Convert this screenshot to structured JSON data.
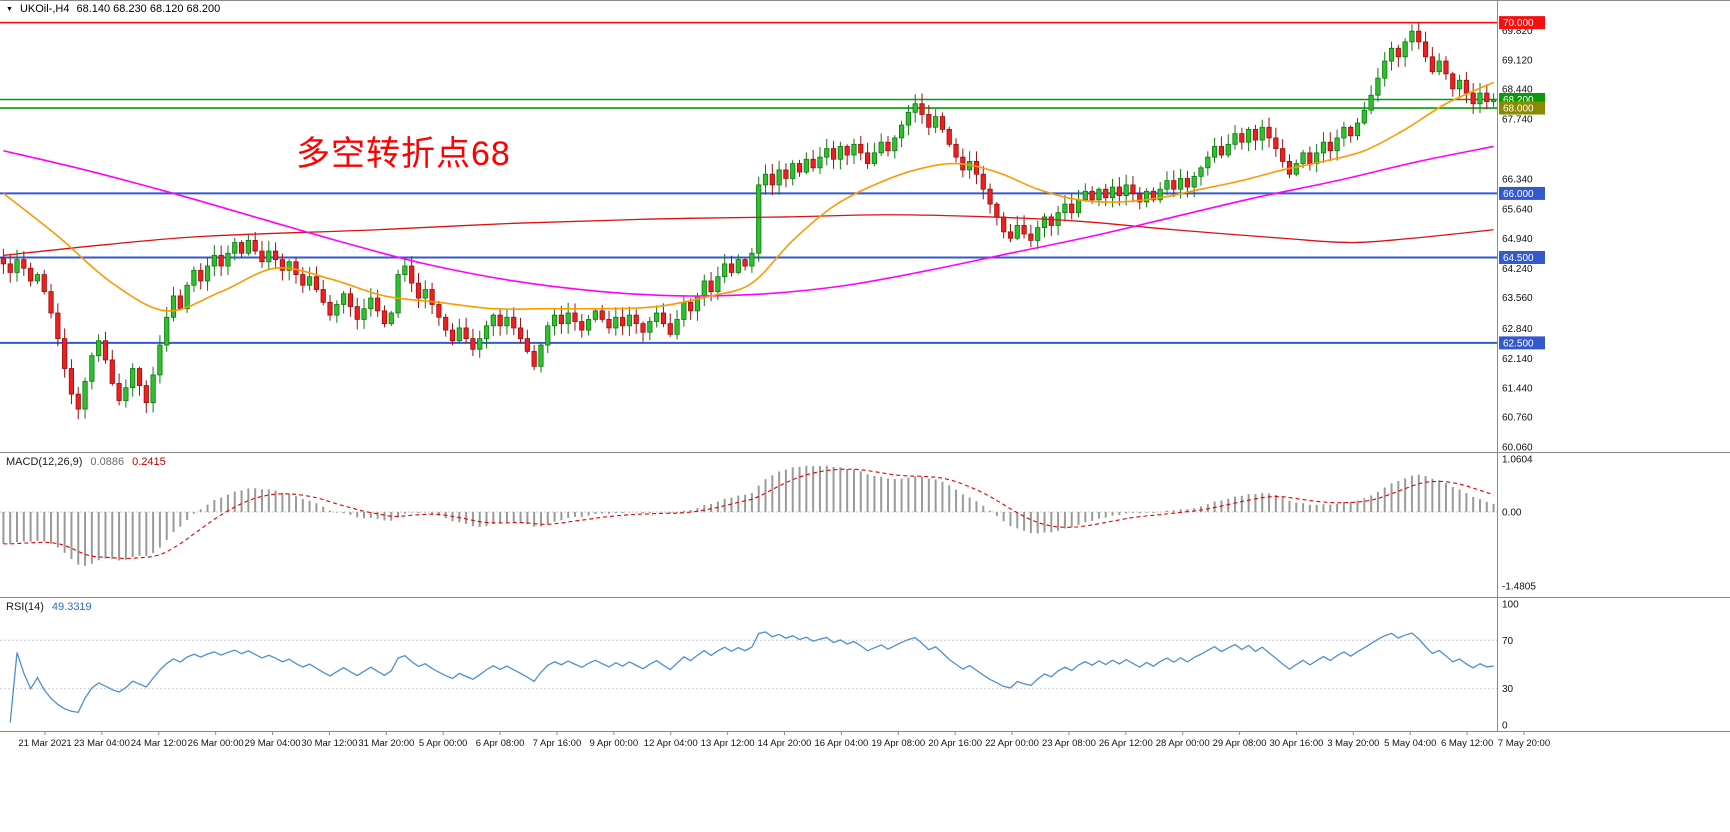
{
  "header": {
    "marker": "▼",
    "symbol_period": "UKOil-,H4",
    "ohlc": "68.140 68.230 68.120 68.200"
  },
  "annotation": {
    "text": "多空转折点68",
    "color": "#ff0000"
  },
  "macd_panel": {
    "label": "MACD(12,26,9)",
    "value_main": "0.0886",
    "value_signal": "0.2415"
  },
  "rsi_panel": {
    "label": "RSI(14)",
    "value": "49.3319"
  },
  "chart_data": {
    "type": "candlestick",
    "symbol": "UKOil-",
    "timeframe": "H4",
    "current_ohlc": {
      "open": 68.14,
      "high": 68.23,
      "low": 68.12,
      "close": 68.2
    },
    "ylim": [
      60.0,
      70.5
    ],
    "price_ticks": [
      {
        "v": 69.82,
        "label": "69.820"
      },
      {
        "v": 69.12,
        "label": "69.120"
      },
      {
        "v": 68.44,
        "label": "68.440"
      },
      {
        "v": 67.74,
        "label": "67.740"
      },
      {
        "v": 66.34,
        "label": "66.340"
      },
      {
        "v": 65.64,
        "label": "65.640"
      },
      {
        "v": 64.94,
        "label": "64.940"
      },
      {
        "v": 64.24,
        "label": "64.240"
      },
      {
        "v": 63.56,
        "label": "63.560"
      },
      {
        "v": 62.84,
        "label": "62.840"
      },
      {
        "v": 62.14,
        "label": "62.140"
      },
      {
        "v": 61.44,
        "label": "61.440"
      },
      {
        "v": 60.76,
        "label": "60.760"
      },
      {
        "v": 60.06,
        "label": "60.060"
      }
    ],
    "badges": [
      {
        "v": 70.0,
        "label": "70.000",
        "bg": "#f50f0f"
      },
      {
        "v": 68.2,
        "label": "68.200",
        "bg": "#0a9a0a"
      },
      {
        "v": 68.0,
        "label": "68.000",
        "bg": "#8a8a00"
      },
      {
        "v": 66.0,
        "label": "66.000",
        "bg": "#3558cf"
      },
      {
        "v": 64.5,
        "label": "64.500",
        "bg": "#3558cf"
      },
      {
        "v": 62.5,
        "label": "62.500",
        "bg": "#3558cf"
      }
    ],
    "hlines": [
      {
        "v": 70.0,
        "color": "#ff0000",
        "width": 1.4
      },
      {
        "v": 68.2,
        "color": "#089908",
        "width": 1.6
      },
      {
        "v": 68.0,
        "color": "#089908",
        "width": 1.6
      },
      {
        "v": 66.0,
        "color": "#3558cf",
        "width": 2
      },
      {
        "v": 64.5,
        "color": "#3558cf",
        "width": 2
      },
      {
        "v": 62.5,
        "color": "#3558cf",
        "width": 2
      }
    ],
    "candle_colors": {
      "up_fill": "#2fbf2f",
      "up_stroke": "#0d7a0d",
      "down_fill": "#ef1f1f",
      "down_stroke": "#9a0f0f"
    },
    "closes": [
      64.35,
      64.15,
      64.45,
      64.25,
      63.95,
      64.1,
      63.7,
      63.2,
      62.6,
      61.9,
      61.3,
      60.95,
      61.6,
      62.2,
      62.55,
      62.1,
      61.55,
      61.15,
      61.45,
      61.9,
      61.5,
      61.1,
      61.75,
      62.45,
      63.1,
      63.6,
      63.3,
      63.85,
      64.2,
      63.95,
      64.3,
      64.55,
      64.3,
      64.6,
      64.85,
      64.6,
      64.9,
      64.65,
      64.4,
      64.65,
      64.45,
      64.2,
      64.4,
      64.1,
      63.85,
      64.05,
      63.75,
      63.45,
      63.15,
      63.4,
      63.65,
      63.35,
      63.05,
      63.3,
      63.55,
      63.25,
      62.95,
      63.2,
      64.1,
      64.3,
      63.9,
      63.55,
      63.75,
      63.4,
      63.1,
      62.8,
      62.55,
      62.85,
      62.6,
      62.35,
      62.6,
      62.9,
      63.15,
      62.9,
      63.1,
      62.85,
      62.6,
      62.3,
      61.95,
      62.45,
      62.9,
      63.15,
      62.95,
      63.2,
      63.0,
      62.8,
      63.05,
      63.25,
      63.05,
      62.85,
      63.1,
      62.9,
      63.15,
      62.95,
      62.75,
      63.0,
      63.2,
      62.95,
      62.7,
      63.05,
      63.45,
      63.25,
      63.6,
      63.95,
      63.7,
      64.05,
      64.35,
      64.15,
      64.45,
      64.3,
      64.6,
      66.2,
      66.45,
      66.2,
      66.55,
      66.35,
      66.7,
      66.5,
      66.8,
      66.6,
      66.85,
      67.05,
      66.8,
      67.1,
      66.9,
      67.15,
      66.95,
      66.7,
      66.95,
      67.2,
      67.0,
      67.3,
      67.6,
      67.9,
      68.1,
      67.85,
      67.55,
      67.8,
      67.5,
      67.15,
      66.85,
      66.55,
      66.75,
      66.45,
      66.1,
      65.75,
      65.45,
      65.1,
      64.95,
      65.25,
      65.05,
      64.9,
      65.2,
      65.45,
      65.25,
      65.55,
      65.75,
      65.55,
      65.85,
      66.05,
      65.85,
      66.1,
      65.9,
      66.15,
      65.95,
      66.2,
      66.0,
      65.8,
      66.05,
      65.85,
      66.1,
      66.3,
      66.1,
      66.35,
      66.15,
      66.4,
      66.6,
      66.85,
      67.1,
      66.9,
      67.15,
      67.4,
      67.2,
      67.5,
      67.25,
      67.55,
      67.3,
      67.05,
      66.75,
      66.45,
      66.7,
      66.95,
      66.7,
      66.95,
      67.2,
      67.0,
      67.3,
      67.55,
      67.35,
      67.65,
      67.95,
      68.3,
      68.7,
      69.1,
      69.4,
      69.2,
      69.55,
      69.8,
      69.55,
      69.2,
      68.85,
      69.1,
      68.8,
      68.45,
      68.65,
      68.35,
      68.1,
      68.35,
      68.15,
      68.2
    ],
    "ma_lines": [
      {
        "name": "ma-slow-red",
        "color": "#dd1111",
        "width": 1.3,
        "anchors": [
          [
            0,
            64.55
          ],
          [
            15,
            64.8
          ],
          [
            30,
            65.0
          ],
          [
            55,
            65.15
          ],
          [
            75,
            65.3
          ],
          [
            95,
            65.4
          ],
          [
            115,
            65.45
          ],
          [
            130,
            65.5
          ],
          [
            145,
            65.45
          ],
          [
            158,
            65.35
          ],
          [
            172,
            65.15
          ],
          [
            188,
            64.95
          ],
          [
            198,
            64.85
          ],
          [
            207,
            64.95
          ],
          [
            219,
            65.15
          ]
        ]
      },
      {
        "name": "ma-trend-magenta",
        "color": "#ff00ff",
        "width": 1.6,
        "anchors": [
          [
            0,
            67.0
          ],
          [
            12,
            66.55
          ],
          [
            25,
            66.0
          ],
          [
            38,
            65.4
          ],
          [
            50,
            64.85
          ],
          [
            62,
            64.35
          ],
          [
            75,
            63.95
          ],
          [
            88,
            63.7
          ],
          [
            100,
            63.6
          ],
          [
            112,
            63.65
          ],
          [
            124,
            63.85
          ],
          [
            136,
            64.2
          ],
          [
            148,
            64.6
          ],
          [
            160,
            65.0
          ],
          [
            172,
            65.45
          ],
          [
            184,
            65.9
          ],
          [
            196,
            66.3
          ],
          [
            208,
            66.75
          ],
          [
            219,
            67.1
          ]
        ]
      },
      {
        "name": "ma-fast-orange",
        "color": "#ff9900",
        "width": 1.6,
        "anchors": [
          [
            0,
            66.0
          ],
          [
            8,
            65.0
          ],
          [
            16,
            63.9
          ],
          [
            24,
            63.25
          ],
          [
            32,
            63.7
          ],
          [
            40,
            64.25
          ],
          [
            48,
            64.0
          ],
          [
            56,
            63.6
          ],
          [
            64,
            63.45
          ],
          [
            72,
            63.3
          ],
          [
            80,
            63.3
          ],
          [
            88,
            63.3
          ],
          [
            96,
            63.35
          ],
          [
            104,
            63.6
          ],
          [
            110,
            63.9
          ],
          [
            116,
            64.9
          ],
          [
            122,
            65.7
          ],
          [
            128,
            66.2
          ],
          [
            134,
            66.55
          ],
          [
            140,
            66.7
          ],
          [
            146,
            66.5
          ],
          [
            152,
            66.1
          ],
          [
            158,
            65.85
          ],
          [
            164,
            65.8
          ],
          [
            170,
            65.9
          ],
          [
            176,
            66.1
          ],
          [
            182,
            66.3
          ],
          [
            188,
            66.55
          ],
          [
            194,
            66.75
          ],
          [
            200,
            67.0
          ],
          [
            206,
            67.5
          ],
          [
            212,
            68.1
          ],
          [
            219,
            68.6
          ]
        ]
      }
    ],
    "macd": {
      "fast": 12,
      "slow": 26,
      "signal": 9,
      "seed_fast": 64.8,
      "seed_slow": 65.45,
      "hist_color": "#9a9a9a",
      "signal_color": "#e00000",
      "axis": [
        {
          "v": 1.0604,
          "label": "1.0604"
        },
        {
          "v": 0,
          "label": "0.00"
        },
        {
          "v": -1.4805,
          "label": "-1.4805"
        }
      ]
    },
    "rsi": {
      "period": 14,
      "color": "#4f8fd0",
      "levels": [
        70,
        30
      ],
      "axis": [
        {
          "v": 100,
          "label": "100"
        },
        {
          "v": 70,
          "label": "70"
        },
        {
          "v": 30,
          "label": "30"
        },
        {
          "v": 0,
          "label": "0"
        }
      ]
    },
    "time_labels": [
      "21 Mar 2021",
      "23 Mar 04:00",
      "24 Mar 12:00",
      "26 Mar 00:00",
      "29 Mar 04:00",
      "30 Mar 12:00",
      "31 Mar 20:00",
      "5 Apr 00:00",
      "6 Apr 08:00",
      "7 Apr 16:00",
      "9 Apr 00:00",
      "12 Apr 04:00",
      "13 Apr 12:00",
      "14 Apr 20:00",
      "16 Apr 04:00",
      "19 Apr 08:00",
      "20 Apr 16:00",
      "22 Apr 00:00",
      "23 Apr 08:00",
      "26 Apr 12:00",
      "28 Apr 00:00",
      "29 Apr 08:00",
      "30 Apr 16:00",
      "3 May 20:00",
      "5 May 04:00",
      "6 May 12:00",
      "7 May 20:00"
    ]
  }
}
